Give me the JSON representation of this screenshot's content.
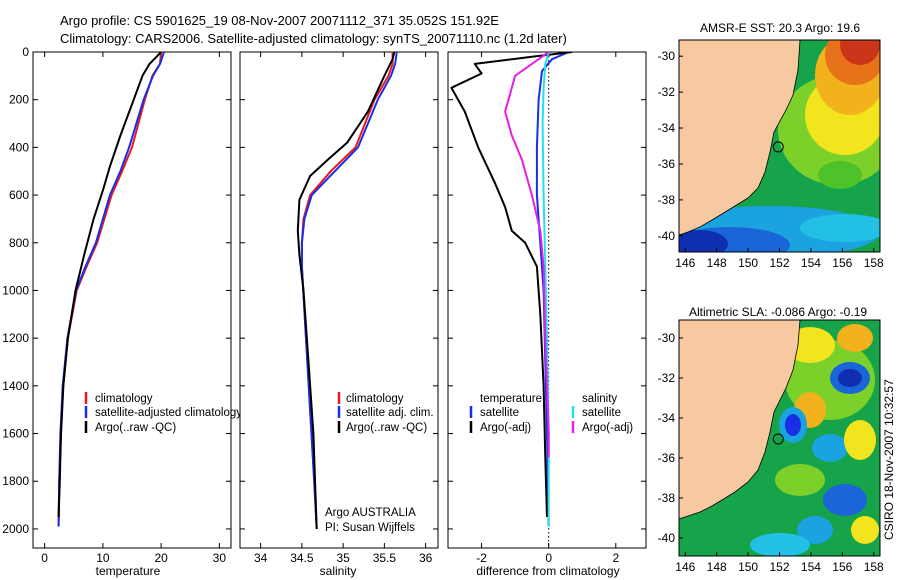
{
  "header": {
    "line1": "Argo profile: CS 5901625_19 08-Nov-2007 20071112_371 35.052S 151.92E",
    "line2": "Climatology: CARS2006. Satellite-adjusted climatology: synTS_20071110.nc (1.2d later)"
  },
  "colors": {
    "climatology": "#e8191f",
    "satellite": "#1a2ee6",
    "argo": "#000000",
    "salinity_satellite": "#22e0f0",
    "salinity_argo": "#e61ee6",
    "land": "#f7c9a0",
    "shelf": "#16a34a"
  },
  "side_text": "CSIRO 18-Nov-2007 10:32:57",
  "chart_data": [
    {
      "id": "temperature",
      "type": "line",
      "xlabel": "temperature",
      "ylabel": "",
      "xlim": [
        -2,
        32
      ],
      "ylim": [
        2080,
        0
      ],
      "xticks": [
        0,
        10,
        20,
        30
      ],
      "yticks": [
        0,
        200,
        400,
        600,
        800,
        1000,
        1200,
        1400,
        1600,
        1800,
        2000
      ],
      "legend": {
        "position": "lower-right",
        "entries": [
          "climatology",
          "satellite-adjusted climatology",
          "Argo(..raw -QC)"
        ]
      },
      "series": [
        {
          "name": "climatology",
          "color_key": "climatology",
          "x": [
            20.0,
            19.8,
            18.5,
            17.2,
            15.0,
            13.3,
            11.5,
            9.0,
            7.2,
            5.5,
            4.0,
            3.2,
            2.8,
            2.5,
            2.4
          ],
          "y": [
            0,
            50,
            100,
            200,
            400,
            500,
            600,
            800,
            900,
            1000,
            1200,
            1400,
            1600,
            1800,
            1990
          ]
        },
        {
          "name": "satellite-adjusted climatology",
          "color_key": "satellite",
          "x": [
            20.5,
            19.8,
            18.6,
            17.0,
            14.5,
            13.0,
            11.2,
            8.8,
            7.0,
            5.4,
            3.9,
            3.1,
            2.7,
            2.5,
            2.4
          ],
          "y": [
            0,
            50,
            100,
            200,
            400,
            500,
            600,
            800,
            900,
            1000,
            1200,
            1400,
            1600,
            1800,
            1990
          ]
        },
        {
          "name": "Argo(..raw -QC)",
          "color_key": "argo",
          "x": [
            20.0,
            19.2,
            18.0,
            16.8,
            15.3,
            13.0,
            11.2,
            10.0,
            8.4,
            6.8,
            5.3,
            4.0,
            3.2,
            2.8,
            2.6,
            2.4
          ],
          "y": [
            0,
            20,
            50,
            100,
            200,
            350,
            480,
            580,
            700,
            850,
            1000,
            1200,
            1400,
            1600,
            1800,
            1950
          ]
        }
      ]
    },
    {
      "id": "salinity",
      "type": "line",
      "xlabel": "salinity",
      "xlim": [
        33.75,
        36.15
      ],
      "ylim": [
        2080,
        0
      ],
      "xticks": [
        34,
        34.5,
        35,
        35.5,
        36
      ],
      "legend": {
        "position": "lower-right",
        "entries": [
          "climatology",
          "satellite adj. clim.",
          "Argo(..raw -QC)"
        ]
      },
      "annotation": [
        "Argo AUSTRALIA",
        "PI: Susan Wijffels"
      ],
      "series": [
        {
          "name": "climatology",
          "color_key": "climatology",
          "x": [
            35.6,
            35.6,
            35.55,
            35.38,
            35.15,
            34.85,
            34.6,
            34.52,
            34.5,
            34.5,
            34.55,
            34.6,
            34.65,
            34.68
          ],
          "y": [
            0,
            50,
            100,
            200,
            400,
            500,
            600,
            700,
            800,
            900,
            1200,
            1500,
            1800,
            2000
          ]
        },
        {
          "name": "satellite adj. clim.",
          "color_key": "satellite",
          "x": [
            35.65,
            35.63,
            35.58,
            35.42,
            35.18,
            34.9,
            34.62,
            34.53,
            34.5,
            34.5,
            34.55,
            34.6,
            34.65,
            34.68
          ],
          "y": [
            0,
            50,
            100,
            200,
            400,
            500,
            600,
            700,
            800,
            900,
            1200,
            1500,
            1800,
            2000
          ]
        },
        {
          "name": "Argo(..raw -QC)",
          "color_key": "argo",
          "x": [
            35.62,
            35.6,
            35.5,
            35.3,
            35.05,
            34.82,
            34.6,
            34.47,
            34.45,
            34.47,
            34.52,
            34.58,
            34.64,
            34.68
          ],
          "y": [
            0,
            30,
            100,
            250,
            380,
            450,
            520,
            620,
            750,
            850,
            1000,
            1300,
            1600,
            2000
          ]
        }
      ]
    },
    {
      "id": "difference",
      "type": "line",
      "xlabel": "difference from climatology",
      "xlim": [
        -3.0,
        2.9
      ],
      "ylim": [
        2080,
        0
      ],
      "xticks": [
        -2,
        0,
        2
      ],
      "zero_line": true,
      "legend": {
        "position": "lower-right",
        "entries": [
          "temperature",
          "satellite",
          "Argo(-adj)",
          "salinity",
          "satellite",
          "Argo(-adj)"
        ]
      },
      "series": [
        {
          "name": "temperature satellite",
          "color_key": "satellite",
          "x": [
            0.6,
            0.1,
            -0.2,
            -0.3,
            -0.35,
            -0.35,
            -0.25,
            -0.15,
            -0.1,
            -0.05,
            0.0
          ],
          "y": [
            0,
            30,
            80,
            200,
            400,
            600,
            800,
            1000,
            1300,
            1600,
            1990
          ]
        },
        {
          "name": "temperature Argo(-adj)",
          "color_key": "argo",
          "x": [
            0.7,
            -0.5,
            -2.2,
            -2.0,
            -2.9,
            -2.5,
            -2.1,
            -1.6,
            -1.3,
            -1.1,
            -0.7,
            -0.35,
            -0.25,
            -0.15,
            -0.1,
            -0.05
          ],
          "y": [
            0,
            20,
            50,
            90,
            150,
            250,
            400,
            550,
            650,
            750,
            800,
            900,
            1100,
            1400,
            1700,
            1950
          ]
        },
        {
          "name": "salinity satellite",
          "color_key": "salinity_satellite",
          "x": [
            0.0,
            -0.1,
            -0.15,
            -0.18,
            -0.15,
            -0.1,
            -0.05,
            0.0,
            0.0
          ],
          "y": [
            0,
            50,
            150,
            300,
            600,
            900,
            1200,
            1600,
            1990
          ]
        },
        {
          "name": "salinity Argo(-adj)",
          "color_key": "salinity_argo",
          "x": [
            0.0,
            -0.6,
            -1.0,
            -1.1,
            -1.3,
            -1.1,
            -0.8,
            -0.5,
            -0.25,
            -0.15,
            -0.1,
            0.0,
            0.0
          ],
          "y": [
            0,
            60,
            100,
            150,
            250,
            350,
            450,
            600,
            750,
            900,
            1200,
            1600,
            1700
          ]
        }
      ]
    },
    {
      "id": "sst_map",
      "type": "heatmap",
      "title": "AMSR-E SST: 20.3 Argo: 19.6",
      "xlim": [
        145.6,
        158.4
      ],
      "ylim": [
        -40.9,
        -29.1
      ],
      "xticks": [
        146,
        148,
        150,
        152,
        154,
        156,
        158
      ],
      "yticks": [
        -30,
        -32,
        -34,
        -36,
        -38,
        -40
      ],
      "marker": {
        "lon": 151.92,
        "lat": -35.052
      }
    },
    {
      "id": "sla_map",
      "type": "heatmap",
      "title": "Altimetric SLA: -0.086 Argo: -0.19",
      "xlim": [
        145.6,
        158.4
      ],
      "ylim": [
        -40.9,
        -29.1
      ],
      "xticks": [
        146,
        148,
        150,
        152,
        154,
        156,
        158
      ],
      "yticks": [
        -30,
        -32,
        -34,
        -36,
        -38,
        -40
      ],
      "marker": {
        "lon": 151.92,
        "lat": -35.052
      }
    }
  ]
}
